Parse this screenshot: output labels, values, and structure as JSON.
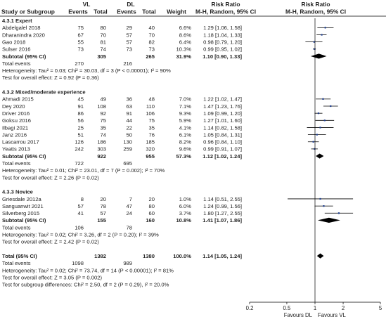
{
  "header": {
    "group1": "VL",
    "group2": "DL",
    "rr_top": "Risk Ratio",
    "rr_top2": "Risk Ratio",
    "study": "Study or Subgroup",
    "events": "Events",
    "total": "Total",
    "weight": "Weight",
    "method": "M-H, Random, 95% CI",
    "method2": "M-H, Random, 95% CI"
  },
  "rows": [
    {
      "kind": "section",
      "label": "4.3.1 Expert"
    },
    {
      "kind": "study",
      "label": "Abdelgalel 2018",
      "e1": "75",
      "n1": "80",
      "e2": "29",
      "n2": "40",
      "w": "6.6%",
      "ci": "1.29 [1.06, 1.58]",
      "rr": 1.29,
      "lo": 1.06,
      "hi": 1.58
    },
    {
      "kind": "study",
      "label": "Dharanindra 2020",
      "e1": "67",
      "n1": "70",
      "e2": "57",
      "n2": "70",
      "w": "8.6%",
      "ci": "1.18 [1.04, 1.33]",
      "rr": 1.18,
      "lo": 1.04,
      "hi": 1.33
    },
    {
      "kind": "study",
      "label": "Gao 2018",
      "e1": "55",
      "n1": "81",
      "e2": "57",
      "n2": "82",
      "w": "6.4%",
      "ci": "0.98 [0.79, 1.20]",
      "rr": 0.98,
      "lo": 0.79,
      "hi": 1.2
    },
    {
      "kind": "study",
      "label": "Sulser 2016",
      "e1": "73",
      "n1": "74",
      "e2": "73",
      "n2": "73",
      "w": "10.3%",
      "ci": "0.99 [0.95, 1.02]",
      "rr": 0.99,
      "lo": 0.95,
      "hi": 1.02
    },
    {
      "kind": "subtotal",
      "label": "Subtotal (95% CI)",
      "n1": "305",
      "n2": "265",
      "w": "31.9%",
      "ci": "1.10 [0.90, 1.33]",
      "rr": 1.1,
      "lo": 0.9,
      "hi": 1.33
    },
    {
      "kind": "events",
      "label": "Total events",
      "e1": "270",
      "e2": "216"
    },
    {
      "kind": "note",
      "label": "Heterogeneity: Tau² = 0.03; Chi² = 30.03, df = 3 (P < 0.00001); I² = 90%"
    },
    {
      "kind": "note",
      "label": "Test for overall effect: Z = 0.92 (P = 0.36)"
    },
    {
      "kind": "blank"
    },
    {
      "kind": "section",
      "label": "4.3.2 Mixed/moderate experience"
    },
    {
      "kind": "study",
      "label": "Ahmadi 2015",
      "e1": "45",
      "n1": "49",
      "e2": "36",
      "n2": "48",
      "w": "7.0%",
      "ci": "1.22 [1.02, 1.47]",
      "rr": 1.22,
      "lo": 1.02,
      "hi": 1.47
    },
    {
      "kind": "study",
      "label": "Dey 2020",
      "e1": "91",
      "n1": "108",
      "e2": "63",
      "n2": "110",
      "w": "7.1%",
      "ci": "1.47 [1.23, 1.76]",
      "rr": 1.47,
      "lo": 1.23,
      "hi": 1.76
    },
    {
      "kind": "study",
      "label": "Driver 2016",
      "e1": "86",
      "n1": "92",
      "e2": "91",
      "n2": "106",
      "w": "9.3%",
      "ci": "1.09 [0.99, 1.20]",
      "rr": 1.09,
      "lo": 0.99,
      "hi": 1.2
    },
    {
      "kind": "study",
      "label": "Goksu 2016",
      "e1": "56",
      "n1": "75",
      "e2": "44",
      "n2": "75",
      "w": "5.9%",
      "ci": "1.27 [1.01, 1.60]",
      "rr": 1.27,
      "lo": 1.01,
      "hi": 1.6
    },
    {
      "kind": "study",
      "label": "Ilbagi 2021",
      "e1": "25",
      "n1": "35",
      "e2": "22",
      "n2": "35",
      "w": "4.1%",
      "ci": "1.14 [0.82, 1.58]",
      "rr": 1.14,
      "lo": 0.82,
      "hi": 1.58
    },
    {
      "kind": "study",
      "label": "Janz 2016",
      "e1": "51",
      "n1": "74",
      "e2": "50",
      "n2": "76",
      "w": "6.1%",
      "ci": "1.05 [0.84, 1.31]",
      "rr": 1.05,
      "lo": 0.84,
      "hi": 1.31
    },
    {
      "kind": "study",
      "label": "Lascarrou 2017",
      "e1": "126",
      "n1": "186",
      "e2": "130",
      "n2": "185",
      "w": "8.2%",
      "ci": "0.96 [0.84, 1.10]",
      "rr": 0.96,
      "lo": 0.84,
      "hi": 1.1
    },
    {
      "kind": "study",
      "label": "Yeatts 2013",
      "e1": "242",
      "n1": "303",
      "e2": "259",
      "n2": "320",
      "w": "9.6%",
      "ci": "0.99 [0.91, 1.07]",
      "rr": 0.99,
      "lo": 0.91,
      "hi": 1.07
    },
    {
      "kind": "subtotal",
      "label": "Subtotal (95% CI)",
      "n1": "922",
      "n2": "955",
      "w": "57.3%",
      "ci": "1.12 [1.02, 1.24]",
      "rr": 1.12,
      "lo": 1.02,
      "hi": 1.24
    },
    {
      "kind": "events",
      "label": "Total events",
      "e1": "722",
      "e2": "695"
    },
    {
      "kind": "note",
      "label": "Heterogeneity: Tau² = 0.01; Chi² = 23.01, df = 7 (P = 0.002); I² = 70%"
    },
    {
      "kind": "note",
      "label": "Test for overall effect: Z = 2.26 (P = 0.02)"
    },
    {
      "kind": "blank"
    },
    {
      "kind": "section",
      "label": "4.3.3 Novice"
    },
    {
      "kind": "study",
      "label": "Griesdale 2012a",
      "e1": "8",
      "n1": "20",
      "e2": "7",
      "n2": "20",
      "w": "1.0%",
      "ci": "1.14 [0.51, 2.55]",
      "rr": 1.14,
      "lo": 0.51,
      "hi": 2.55
    },
    {
      "kind": "study",
      "label": "Sanguanwit 2021",
      "e1": "57",
      "n1": "78",
      "e2": "47",
      "n2": "80",
      "w": "6.0%",
      "ci": "1.24 [0.99, 1.56]",
      "rr": 1.24,
      "lo": 0.99,
      "hi": 1.56
    },
    {
      "kind": "study",
      "label": "Silverberg 2015",
      "e1": "41",
      "n1": "57",
      "e2": "24",
      "n2": "60",
      "w": "3.7%",
      "ci": "1.80 [1.27, 2.55]",
      "rr": 1.8,
      "lo": 1.27,
      "hi": 2.55
    },
    {
      "kind": "subtotal",
      "label": "Subtotal (95% CI)",
      "n1": "155",
      "n2": "160",
      "w": "10.8%",
      "ci": "1.41 [1.07, 1.86]",
      "rr": 1.41,
      "lo": 1.07,
      "hi": 1.86
    },
    {
      "kind": "events",
      "label": "Total events",
      "e1": "106",
      "e2": "78"
    },
    {
      "kind": "note",
      "label": "Heterogeneity: Tau² = 0.02; Chi² = 3.26, df = 2 (P = 0.20); I² = 39%"
    },
    {
      "kind": "note",
      "label": "Test for overall effect: Z = 2.42 (P = 0.02)"
    },
    {
      "kind": "blank"
    },
    {
      "kind": "subtotal",
      "label": "Total (95% CI)",
      "n1": "1382",
      "n2": "1380",
      "w": "100.0%",
      "ci": "1.14 [1.05, 1.24]",
      "rr": 1.14,
      "lo": 1.05,
      "hi": 1.24
    },
    {
      "kind": "events",
      "label": "Total events",
      "e1": "1098",
      "e2": "989"
    },
    {
      "kind": "note",
      "label": "Heterogeneity: Tau² = 0.02; Chi² = 73.74, df = 14 (P < 0.00001); I² = 81%"
    },
    {
      "kind": "note",
      "label": "Test for overall effect: Z = 3.05 (P = 0.002)"
    },
    {
      "kind": "note",
      "label": "Test for subgroup differences: Chi² = 2.50, df = 2 (P = 0.29), I² = 20.0%"
    }
  ],
  "axis": {
    "ticks": [
      0.2,
      0.5,
      1,
      2,
      5
    ],
    "tick_labels": [
      "0.2",
      "0.5",
      "1",
      "2",
      "5"
    ],
    "favours_left": "Favours DL",
    "favours_right": "Favours VL",
    "scale": "log"
  },
  "colors": {
    "study_square": "#1f3f8f",
    "line": "#000000",
    "grid": "#bbbbbb",
    "text": "#222222"
  },
  "chart_data": {
    "type": "forest",
    "xlabel": "",
    "scale": "log",
    "xlim": [
      0.2,
      5
    ],
    "reference_line": 1,
    "studies": [
      {
        "name": "Abdelgalel 2018",
        "subgroup": "4.3.1 Expert",
        "rr": 1.29,
        "ci": [
          1.06,
          1.58
        ],
        "weight": 6.6
      },
      {
        "name": "Dharanindra 2020",
        "subgroup": "4.3.1 Expert",
        "rr": 1.18,
        "ci": [
          1.04,
          1.33
        ],
        "weight": 8.6
      },
      {
        "name": "Gao 2018",
        "subgroup": "4.3.1 Expert",
        "rr": 0.98,
        "ci": [
          0.79,
          1.2
        ],
        "weight": 6.4
      },
      {
        "name": "Sulser 2016",
        "subgroup": "4.3.1 Expert",
        "rr": 0.99,
        "ci": [
          0.95,
          1.02
        ],
        "weight": 10.3
      },
      {
        "name": "Ahmadi 2015",
        "subgroup": "4.3.2 Mixed/moderate experience",
        "rr": 1.22,
        "ci": [
          1.02,
          1.47
        ],
        "weight": 7.0
      },
      {
        "name": "Dey 2020",
        "subgroup": "4.3.2 Mixed/moderate experience",
        "rr": 1.47,
        "ci": [
          1.23,
          1.76
        ],
        "weight": 7.1
      },
      {
        "name": "Driver 2016",
        "subgroup": "4.3.2 Mixed/moderate experience",
        "rr": 1.09,
        "ci": [
          0.99,
          1.2
        ],
        "weight": 9.3
      },
      {
        "name": "Goksu 2016",
        "subgroup": "4.3.2 Mixed/moderate experience",
        "rr": 1.27,
        "ci": [
          1.01,
          1.6
        ],
        "weight": 5.9
      },
      {
        "name": "Ilbagi 2021",
        "subgroup": "4.3.2 Mixed/moderate experience",
        "rr": 1.14,
        "ci": [
          0.82,
          1.58
        ],
        "weight": 4.1
      },
      {
        "name": "Janz 2016",
        "subgroup": "4.3.2 Mixed/moderate experience",
        "rr": 1.05,
        "ci": [
          0.84,
          1.31
        ],
        "weight": 6.1
      },
      {
        "name": "Lascarrou 2017",
        "subgroup": "4.3.2 Mixed/moderate experience",
        "rr": 0.96,
        "ci": [
          0.84,
          1.1
        ],
        "weight": 8.2
      },
      {
        "name": "Yeatts 2013",
        "subgroup": "4.3.2 Mixed/moderate experience",
        "rr": 0.99,
        "ci": [
          0.91,
          1.07
        ],
        "weight": 9.6
      },
      {
        "name": "Griesdale 2012a",
        "subgroup": "4.3.3 Novice",
        "rr": 1.14,
        "ci": [
          0.51,
          2.55
        ],
        "weight": 1.0
      },
      {
        "name": "Sanguanwit 2021",
        "subgroup": "4.3.3 Novice",
        "rr": 1.24,
        "ci": [
          0.99,
          1.56
        ],
        "weight": 6.0
      },
      {
        "name": "Silverberg 2015",
        "subgroup": "4.3.3 Novice",
        "rr": 1.8,
        "ci": [
          1.27,
          2.55
        ],
        "weight": 3.7
      }
    ],
    "subtotals": [
      {
        "name": "4.3.1 Expert",
        "rr": 1.1,
        "ci": [
          0.9,
          1.33
        ],
        "weight": 31.9
      },
      {
        "name": "4.3.2 Mixed/moderate experience",
        "rr": 1.12,
        "ci": [
          1.02,
          1.24
        ],
        "weight": 57.3
      },
      {
        "name": "4.3.3 Novice",
        "rr": 1.41,
        "ci": [
          1.07,
          1.86
        ],
        "weight": 10.8
      }
    ],
    "overall": {
      "rr": 1.14,
      "ci": [
        1.05,
        1.24
      ],
      "weight": 100.0
    }
  }
}
